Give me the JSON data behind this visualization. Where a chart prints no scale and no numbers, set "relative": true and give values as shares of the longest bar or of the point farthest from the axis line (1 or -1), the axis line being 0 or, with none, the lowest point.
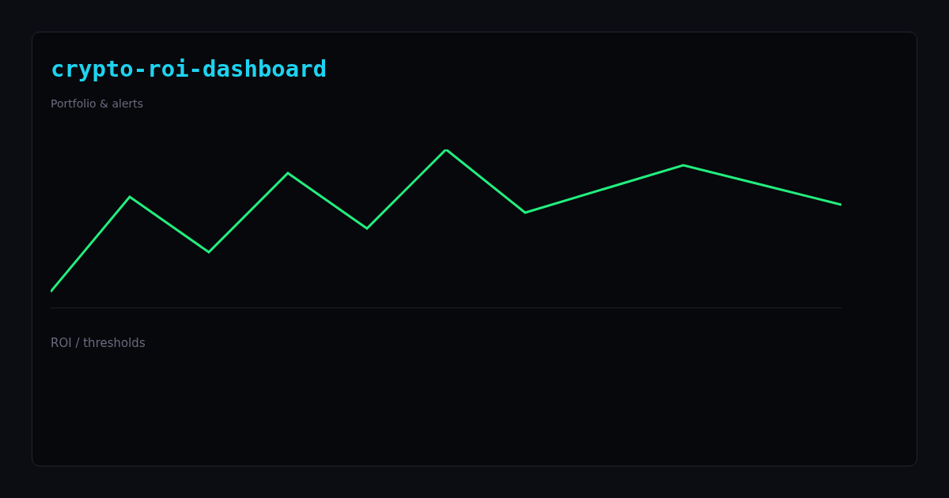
{
  "chart_data": {
    "type": "line",
    "title": "crypto-roi-dashboard",
    "subtitle": "Portfolio & alerts",
    "annotations": [
      "ROI / thresholds"
    ],
    "relative": true,
    "categories": [
      null,
      null,
      null,
      null,
      null,
      null,
      null,
      null,
      null,
      null,
      null
    ],
    "series": [
      {
        "color": "#22ee7f",
        "values": [
          0.1,
          0.7,
          0.35,
          0.85,
          0.5,
          1,
          0.6,
          0.75,
          0.9,
          0.775,
          0.65
        ]
      }
    ],
    "legend": false,
    "marker": "none",
    "line_style": "solid"
  }
}
